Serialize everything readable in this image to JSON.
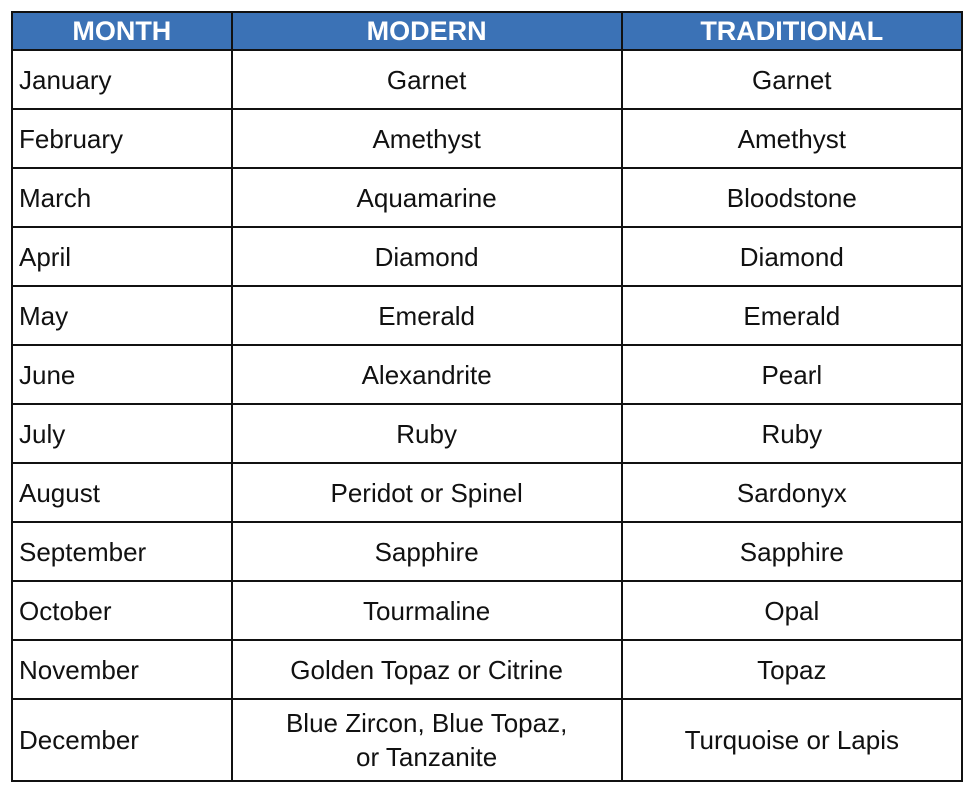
{
  "header": {
    "accent": "#3b72b6",
    "columns": [
      "MONTH",
      "MODERN",
      "TRADITIONAL"
    ]
  },
  "rows": [
    {
      "month": "January",
      "modern": "Garnet",
      "traditional": "Garnet"
    },
    {
      "month": "February",
      "modern": "Amethyst",
      "traditional": "Amethyst"
    },
    {
      "month": "March",
      "modern": "Aquamarine",
      "traditional": "Bloodstone"
    },
    {
      "month": "April",
      "modern": "Diamond",
      "traditional": "Diamond"
    },
    {
      "month": "May",
      "modern": "Emerald",
      "traditional": "Emerald"
    },
    {
      "month": "June",
      "modern": "Alexandrite",
      "traditional": "Pearl"
    },
    {
      "month": "July",
      "modern": "Ruby",
      "traditional": "Ruby"
    },
    {
      "month": "August",
      "modern": "Peridot or Spinel",
      "traditional": "Sardonyx"
    },
    {
      "month": "September",
      "modern": "Sapphire",
      "traditional": "Sapphire"
    },
    {
      "month": "October",
      "modern": "Tourmaline",
      "traditional": "Opal"
    },
    {
      "month": "November",
      "modern": "Golden Topaz or Citrine",
      "traditional": "Topaz"
    },
    {
      "month": "December",
      "modern_lines": [
        "Blue Zircon, Blue Topaz,",
        "or Tanzanite"
      ],
      "traditional": "Turquoise or Lapis"
    }
  ]
}
